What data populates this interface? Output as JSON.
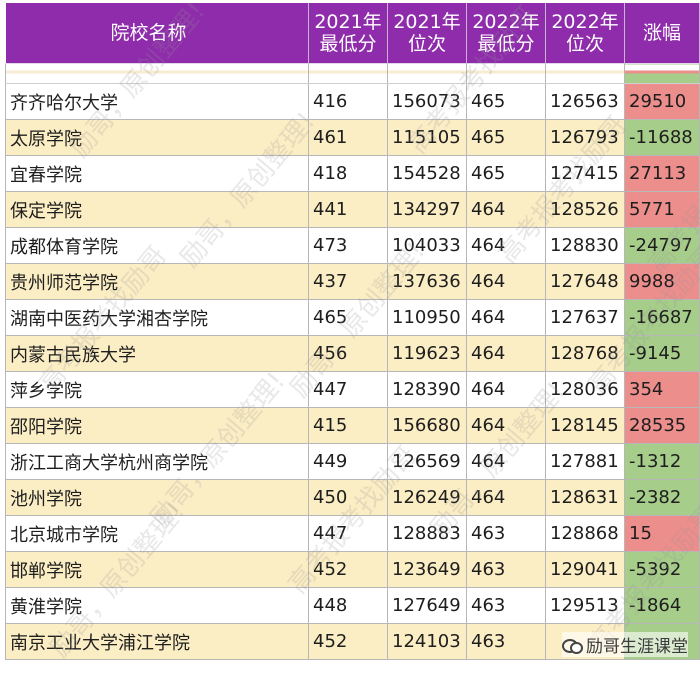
{
  "headers": {
    "name": "院校名称",
    "min2021": "2021年\n最低分",
    "rank2021": "2021年\n位次",
    "min2022": "2022年\n最低分",
    "rank2022": "2022年\n位次",
    "change": "涨幅"
  },
  "rows": [
    {
      "name": "齐齐哈尔大学",
      "min2021": "416",
      "rank2021": "156073",
      "min2022": "465",
      "rank2022": "126563",
      "change": "29510",
      "trend": "up"
    },
    {
      "name": "太原学院",
      "min2021": "461",
      "rank2021": "115105",
      "min2022": "465",
      "rank2022": "126793",
      "change": "-11688",
      "trend": "down"
    },
    {
      "name": "宜春学院",
      "min2021": "418",
      "rank2021": "154528",
      "min2022": "465",
      "rank2022": "127415",
      "change": "27113",
      "trend": "up"
    },
    {
      "name": "保定学院",
      "min2021": "441",
      "rank2021": "134297",
      "min2022": "464",
      "rank2022": "128526",
      "change": "5771",
      "trend": "up"
    },
    {
      "name": "成都体育学院",
      "min2021": "473",
      "rank2021": "104033",
      "min2022": "464",
      "rank2022": "128830",
      "change": "-24797",
      "trend": "down"
    },
    {
      "name": "贵州师范学院",
      "min2021": "437",
      "rank2021": "137636",
      "min2022": "464",
      "rank2022": "127648",
      "change": "9988",
      "trend": "up"
    },
    {
      "name": "湖南中医药大学湘杏学院",
      "min2021": "465",
      "rank2021": "110950",
      "min2022": "464",
      "rank2022": "127637",
      "change": "-16687",
      "trend": "down"
    },
    {
      "name": "内蒙古民族大学",
      "min2021": "456",
      "rank2021": "119623",
      "min2022": "464",
      "rank2022": "128768",
      "change": "-9145",
      "trend": "down"
    },
    {
      "name": "萍乡学院",
      "min2021": "447",
      "rank2021": "128390",
      "min2022": "464",
      "rank2022": "128036",
      "change": "354",
      "trend": "up"
    },
    {
      "name": "邵阳学院",
      "min2021": "415",
      "rank2021": "156680",
      "min2022": "464",
      "rank2022": "128145",
      "change": "28535",
      "trend": "up"
    },
    {
      "name": "浙江工商大学杭州商学院",
      "min2021": "449",
      "rank2021": "126569",
      "min2022": "464",
      "rank2022": "127881",
      "change": "-1312",
      "trend": "down"
    },
    {
      "name": "池州学院",
      "min2021": "450",
      "rank2021": "126249",
      "min2022": "464",
      "rank2022": "128631",
      "change": "-2382",
      "trend": "down"
    },
    {
      "name": "北京城市学院",
      "min2021": "447",
      "rank2021": "128883",
      "min2022": "463",
      "rank2022": "128868",
      "change": "15",
      "trend": "up"
    },
    {
      "name": "邯郸学院",
      "min2021": "452",
      "rank2021": "123649",
      "min2022": "463",
      "rank2022": "129041",
      "change": "-5392",
      "trend": "down"
    },
    {
      "name": "黄淮学院",
      "min2021": "448",
      "rank2021": "127649",
      "min2022": "463",
      "rank2022": "129513",
      "change": "-1864",
      "trend": "down"
    },
    {
      "name": "南京工业大学浦江学院",
      "min2021": "452",
      "rank2021": "124103",
      "min2022": "463",
      "rank2022": "",
      "change": "",
      "trend": "down"
    }
  ],
  "watermarks": [
    {
      "text": "励哥，原创整理!"
    },
    {
      "text": "高考报考找励哥"
    }
  ],
  "logo": {
    "text": "励哥生涯课堂",
    "icon": "wechat-icon"
  },
  "colors": {
    "header_bg": "#8e2cab",
    "row_alt": "#fbedc4",
    "up": "#ec8e8c",
    "down": "#a6cd8a"
  }
}
